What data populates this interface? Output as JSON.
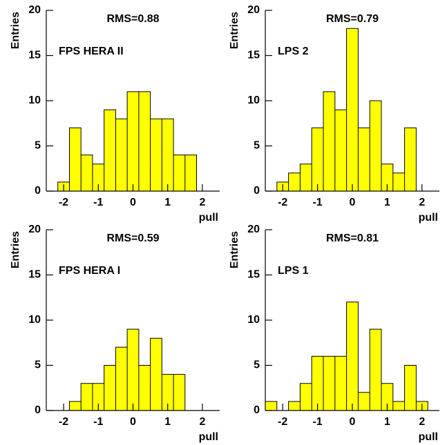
{
  "chart_data": [
    {
      "type": "histogram",
      "title": "RMS=0.88",
      "annotation": "FPS HERA II",
      "xlabel": "pull",
      "ylabel": "Entries",
      "color": "#ffff00",
      "bins": [
        -2.5,
        -2.167,
        -1.833,
        -1.5,
        -1.167,
        -0.833,
        -0.5,
        -0.167,
        0.167,
        0.5,
        0.833,
        1.167,
        1.5,
        1.833,
        2.167,
        2.5
      ],
      "counts": [
        0,
        1,
        7,
        4,
        3,
        9,
        8,
        11,
        11,
        8,
        8,
        4,
        4,
        0,
        0
      ],
      "xlim": [
        -2.5,
        2.5
      ],
      "ylim": [
        0,
        20
      ],
      "xticks": [
        -2,
        -1,
        0,
        1,
        2
      ],
      "yticks": [
        0,
        5,
        10,
        15,
        20
      ]
    },
    {
      "type": "histogram",
      "title": "RMS=0.79",
      "annotation": "LPS 2",
      "xlabel": "pull",
      "ylabel": "Entries",
      "color": "#ffff00",
      "bins": [
        -2.5,
        -2.167,
        -1.833,
        -1.5,
        -1.167,
        -0.833,
        -0.5,
        -0.167,
        0.167,
        0.5,
        0.833,
        1.167,
        1.5,
        1.833,
        2.167,
        2.5
      ],
      "counts": [
        0,
        1,
        2,
        3,
        7,
        11,
        9,
        18,
        7,
        10,
        3,
        2,
        7,
        0,
        0
      ],
      "xlim": [
        -2.5,
        2.5
      ],
      "ylim": [
        0,
        20
      ],
      "xticks": [
        -2,
        -1,
        0,
        1,
        2
      ],
      "yticks": [
        0,
        5,
        10,
        15,
        20
      ]
    },
    {
      "type": "histogram",
      "title": "RMS=0.59",
      "annotation": "FPS HERA I",
      "xlabel": "pull",
      "ylabel": "Entries",
      "color": "#ffff00",
      "bins": [
        -2.5,
        -2.167,
        -1.833,
        -1.5,
        -1.167,
        -0.833,
        -0.5,
        -0.167,
        0.167,
        0.5,
        0.833,
        1.167,
        1.5,
        1.833,
        2.167,
        2.5
      ],
      "counts": [
        0,
        0,
        1,
        3,
        3,
        5,
        7,
        9,
        5,
        8,
        4,
        4,
        0,
        0,
        0
      ],
      "xlim": [
        -2.5,
        2.5
      ],
      "ylim": [
        0,
        20
      ],
      "xticks": [
        -2,
        -1,
        0,
        1,
        2
      ],
      "yticks": [
        0,
        5,
        10,
        15,
        20
      ]
    },
    {
      "type": "histogram",
      "title": "RMS=0.81",
      "annotation": "LPS 1",
      "xlabel": "pull",
      "ylabel": "Entries",
      "color": "#ffff00",
      "bins": [
        -2.5,
        -2.167,
        -1.833,
        -1.5,
        -1.167,
        -0.833,
        -0.5,
        -0.167,
        0.167,
        0.5,
        0.833,
        1.167,
        1.5,
        1.833,
        2.167,
        2.5
      ],
      "counts": [
        1,
        0,
        1,
        3,
        6,
        6,
        6,
        12,
        2,
        9,
        3,
        1,
        5,
        1,
        0
      ],
      "xlim": [
        -2.5,
        2.5
      ],
      "ylim": [
        0,
        20
      ],
      "xticks": [
        -2,
        -1,
        0,
        1,
        2
      ],
      "yticks": [
        0,
        5,
        10,
        15,
        20
      ]
    }
  ]
}
